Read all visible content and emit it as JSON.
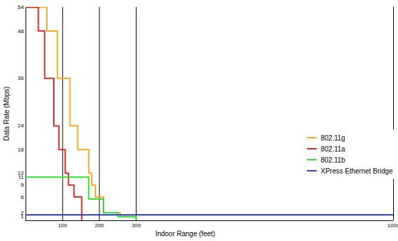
{
  "chart_data": {
    "type": "line",
    "line_style": "step",
    "x_label": "Indoor Range (feet)",
    "y_label": "Data Rate (Mbps)",
    "xlim": [
      0,
      1000
    ],
    "ylim": [
      0,
      54
    ],
    "xticks": [
      100,
      200,
      300,
      1000
    ],
    "yticks": [
      1,
      2,
      6,
      9,
      11,
      12,
      18,
      24,
      36,
      48,
      54
    ],
    "grid": "x",
    "legend": "right",
    "series": [
      {
        "name": "802.11g",
        "color": "#f5a623",
        "x": [
          0,
          57,
          86,
          120,
          141,
          171,
          179,
          189,
          211,
          257,
          300
        ],
        "values": [
          54,
          48,
          36,
          24,
          18,
          12,
          9,
          6,
          2,
          1,
          0
        ]
      },
      {
        "name": "802.11a",
        "color": "#d42a2a",
        "x": [
          0,
          34,
          51,
          76,
          90,
          107,
          116,
          131,
          152
        ],
        "values": [
          54,
          48,
          36,
          24,
          18,
          12,
          9,
          6,
          0
        ]
      },
      {
        "name": "802.11b",
        "color": "#33dd33",
        "x": [
          0,
          171,
          211,
          250,
          300
        ],
        "values": [
          11,
          5.5,
          2,
          1,
          0
        ]
      },
      {
        "name": "XPress Ethernet Bridge",
        "color": "#2b3fd6",
        "x": [
          0,
          1000
        ],
        "values": [
          1.5,
          1.5
        ]
      }
    ]
  }
}
